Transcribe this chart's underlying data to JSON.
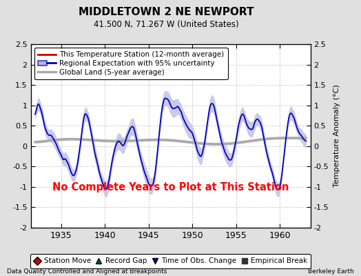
{
  "title": "MIDDLETOWN 2 NE NEWPORT",
  "subtitle": "41.500 N, 71.267 W (United States)",
  "ylabel": "Temperature Anomaly (°C)",
  "xlabel_left": "Data Quality Controlled and Aligned at Breakpoints",
  "xlabel_right": "Berkeley Earth",
  "ylim": [
    -2.0,
    2.5
  ],
  "xlim": [
    1931.5,
    1963.5
  ],
  "xticks": [
    1935,
    1940,
    1945,
    1950,
    1955,
    1960
  ],
  "yticks": [
    -2,
    -1.5,
    -1,
    -0.5,
    0,
    0.5,
    1,
    1.5,
    2,
    2.5
  ],
  "no_data_text": "No Complete Years to Plot at This Station",
  "no_data_color": "#ff0000",
  "bg_color": "#e0e0e0",
  "plot_bg_color": "#ffffff",
  "grid_color": "#cccccc",
  "regional_line_color": "#0000bb",
  "regional_fill_color": "#8888cc",
  "global_line_color": "#aaaaaa",
  "station_line_color": "#cc0000",
  "legend1_entries": [
    {
      "label": "This Temperature Station (12-month average)",
      "color": "#cc0000",
      "lw": 2
    },
    {
      "label": "Regional Expectation with 95% uncertainty",
      "color": "#0000bb",
      "lw": 2
    },
    {
      "label": "Global Land (5-year average)",
      "color": "#aaaaaa",
      "lw": 2
    }
  ],
  "legend2_entries": [
    {
      "label": "Station Move",
      "color": "#cc0000",
      "marker": "D"
    },
    {
      "label": "Record Gap",
      "color": "#006600",
      "marker": "^"
    },
    {
      "label": "Time of Obs. Change",
      "color": "#0000bb",
      "marker": "v"
    },
    {
      "label": "Empirical Break",
      "color": "#333333",
      "marker": "s"
    }
  ]
}
